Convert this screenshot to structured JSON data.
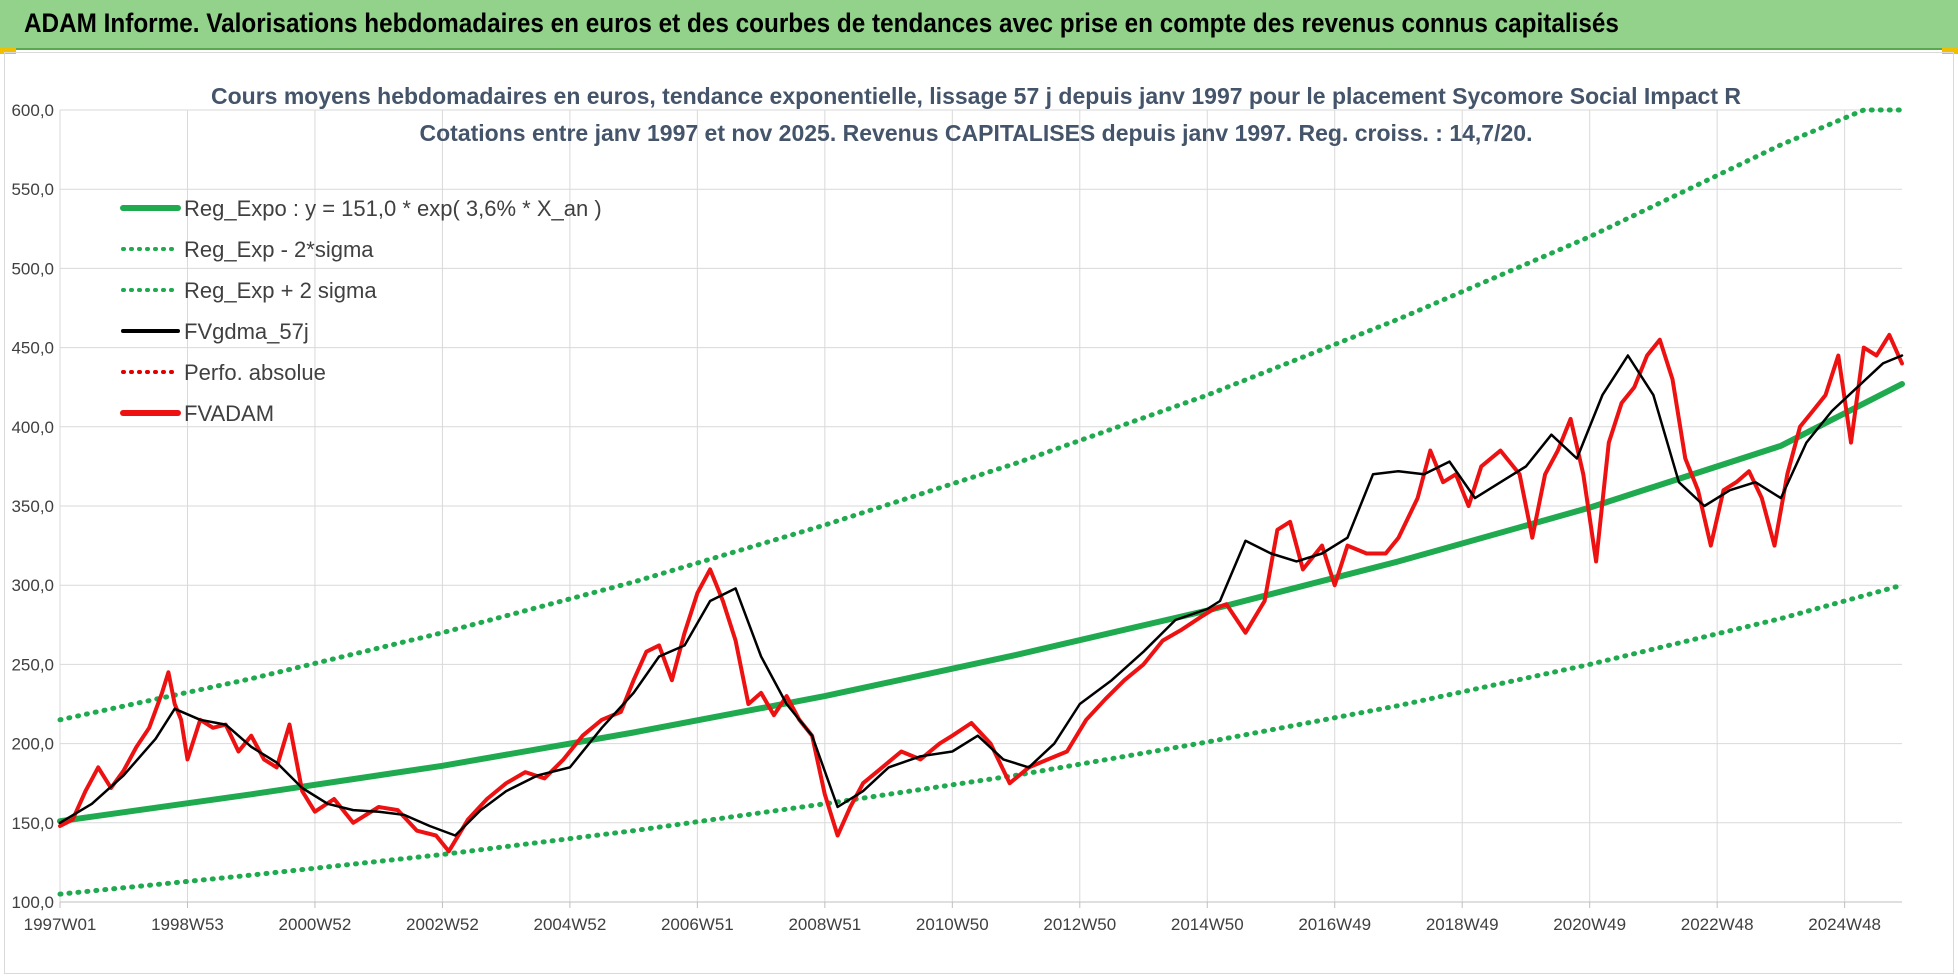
{
  "header": {
    "title": "ADAM Informe. Valorisations hebdomadaires en euros et des courbes de tendances avec prise en compte des revenus connus capitalisés"
  },
  "colors": {
    "banner": "#92d28a",
    "trend": "#1faa4f",
    "sigma": "#1faa4f",
    "smooth": "#000000",
    "perf": "#e00000",
    "price": "#ee1111",
    "grid": "#d9d9d9"
  },
  "chart_data": {
    "type": "line",
    "title": "Cours moyens hebdomadaires en euros, tendance exponentielle, lissage 57 j depuis janv 1997 pour le placement Sycomore Social Impact R",
    "subtitle": "Cotations entre janv 1997 et nov 2025. Revenus CAPITALISES depuis janv 1997. Reg. croiss. : 14,7/20.",
    "ylim": [
      100,
      600
    ],
    "xlim": [
      1997.0,
      2025.9
    ],
    "y_ticks": [
      "100,0",
      "150,0",
      "200,0",
      "250,0",
      "300,0",
      "350,0",
      "400,0",
      "450,0",
      "500,0",
      "550,0",
      "600,0"
    ],
    "x_ticks": [
      {
        "label": "1997W01",
        "x": 1997.0
      },
      {
        "label": "1998W53",
        "x": 1999.0
      },
      {
        "label": "2000W52",
        "x": 2001.0
      },
      {
        "label": "2002W52",
        "x": 2003.0
      },
      {
        "label": "2004W52",
        "x": 2005.0
      },
      {
        "label": "2006W51",
        "x": 2007.0
      },
      {
        "label": "2008W51",
        "x": 2009.0
      },
      {
        "label": "2010W50",
        "x": 2011.0
      },
      {
        "label": "2012W50",
        "x": 2013.0
      },
      {
        "label": "2014W50",
        "x": 2015.0
      },
      {
        "label": "2016W49",
        "x": 2017.0
      },
      {
        "label": "2018W49",
        "x": 2019.0
      },
      {
        "label": "2020W49",
        "x": 2021.0
      },
      {
        "label": "2022W48",
        "x": 2023.0
      },
      {
        "label": "2024W48",
        "x": 2025.0
      }
    ],
    "legend_position": "top-left",
    "legend": [
      {
        "label": "Reg_Expo : y = 151,0 * exp( 3,6% *  X_an )",
        "style": "solid-thick",
        "color": "#1faa4f"
      },
      {
        "label": "Reg_Exp - 2*sigma",
        "style": "dotted",
        "color": "#1faa4f"
      },
      {
        "label": "Reg_Exp + 2 sigma",
        "style": "dotted",
        "color": "#1faa4f"
      },
      {
        "label": "FVgdma_57j",
        "style": "solid",
        "color": "#000000"
      },
      {
        "label": "Perfo. absolue",
        "style": "dotted",
        "color": "#e00000"
      },
      {
        "label": "FVADAM",
        "style": "solid-thick",
        "color": "#ee1111"
      }
    ],
    "series": [
      {
        "name": "Reg_Expo : y = 151,0 * exp( 3,6% *  X_an )",
        "x": [
          1997.0,
          2000.0,
          2003.0,
          2006.0,
          2009.0,
          2012.0,
          2015.0,
          2018.0,
          2021.0,
          2024.0,
          2025.9
        ],
        "y": [
          151,
          168,
          186,
          207,
          230,
          256,
          284,
          315,
          349,
          388,
          427
        ]
      },
      {
        "name": "Reg_Exp - 2*sigma",
        "x": [
          1997.0,
          2000.0,
          2003.0,
          2006.0,
          2009.0,
          2012.0,
          2015.0,
          2018.0,
          2021.0,
          2024.0,
          2025.9
        ],
        "y": [
          105,
          117,
          130,
          145,
          162,
          180,
          201,
          224,
          250,
          279,
          300
        ]
      },
      {
        "name": "Reg_Exp + 2 sigma",
        "x": [
          1997.0,
          2000.0,
          2003.0,
          2006.0,
          2009.0,
          2012.0,
          2015.0,
          2018.0,
          2021.0,
          2024.0,
          2025.3,
          2025.9
        ],
        "y": [
          215,
          241,
          270,
          302,
          338,
          377,
          420,
          468,
          520,
          578,
          600,
          600
        ]
      },
      {
        "name": "FVgdma_57j",
        "x": [
          1997.0,
          1997.5,
          1998.0,
          1998.5,
          1998.8,
          1999.2,
          1999.6,
          2000.0,
          2000.4,
          2000.8,
          2001.2,
          2001.6,
          2002.0,
          2002.4,
          2002.8,
          2003.2,
          2003.6,
          2004.0,
          2004.5,
          2005.0,
          2005.5,
          2006.0,
          2006.4,
          2006.8,
          2007.2,
          2007.6,
          2008.0,
          2008.4,
          2008.8,
          2009.2,
          2009.6,
          2010.0,
          2010.5,
          2011.0,
          2011.4,
          2011.8,
          2012.2,
          2012.6,
          2013.0,
          2013.5,
          2014.0,
          2014.5,
          2015.0,
          2015.2,
          2015.6,
          2016.0,
          2016.4,
          2016.8,
          2017.2,
          2017.6,
          2018.0,
          2018.4,
          2018.8,
          2019.2,
          2019.6,
          2020.0,
          2020.4,
          2020.8,
          2021.2,
          2021.6,
          2022.0,
          2022.4,
          2022.8,
          2023.2,
          2023.6,
          2024.0,
          2024.4,
          2024.8,
          2025.2,
          2025.6,
          2025.9
        ],
        "y": [
          150,
          162,
          180,
          203,
          222,
          215,
          212,
          198,
          188,
          172,
          162,
          158,
          157,
          155,
          148,
          142,
          158,
          170,
          180,
          185,
          210,
          232,
          255,
          262,
          290,
          298,
          255,
          225,
          205,
          160,
          170,
          185,
          192,
          195,
          205,
          190,
          185,
          200,
          225,
          240,
          258,
          278,
          285,
          290,
          328,
          320,
          315,
          320,
          330,
          370,
          372,
          370,
          378,
          355,
          365,
          375,
          395,
          380,
          420,
          445,
          420,
          365,
          350,
          360,
          365,
          355,
          390,
          410,
          425,
          440,
          445
        ]
      },
      {
        "name": "FVADAM",
        "x": [
          1997.0,
          1997.2,
          1997.4,
          1997.6,
          1997.8,
          1998.0,
          1998.2,
          1998.4,
          1998.6,
          1998.7,
          1998.8,
          1998.9,
          1999.0,
          1999.2,
          1999.4,
          1999.6,
          1999.8,
          2000.0,
          2000.2,
          2000.4,
          2000.6,
          2000.8,
          2001.0,
          2001.3,
          2001.6,
          2002.0,
          2002.3,
          2002.6,
          2002.9,
          2003.1,
          2003.4,
          2003.7,
          2004.0,
          2004.3,
          2004.6,
          2004.9,
          2005.2,
          2005.5,
          2005.8,
          2006.0,
          2006.2,
          2006.4,
          2006.6,
          2006.8,
          2007.0,
          2007.2,
          2007.4,
          2007.6,
          2007.8,
          2008.0,
          2008.2,
          2008.4,
          2008.6,
          2008.8,
          2009.0,
          2009.2,
          2009.4,
          2009.6,
          2009.9,
          2010.2,
          2010.5,
          2010.8,
          2011.0,
          2011.3,
          2011.6,
          2011.9,
          2012.2,
          2012.5,
          2012.8,
          2013.1,
          2013.4,
          2013.7,
          2014.0,
          2014.3,
          2014.6,
          2014.9,
          2015.1,
          2015.3,
          2015.6,
          2015.9,
          2016.1,
          2016.3,
          2016.5,
          2016.8,
          2017.0,
          2017.2,
          2017.5,
          2017.8,
          2018.0,
          2018.3,
          2018.5,
          2018.7,
          2018.9,
          2019.1,
          2019.3,
          2019.6,
          2019.9,
          2020.1,
          2020.3,
          2020.5,
          2020.7,
          2020.9,
          2021.1,
          2021.3,
          2021.5,
          2021.7,
          2021.9,
          2022.1,
          2022.3,
          2022.5,
          2022.7,
          2022.9,
          2023.1,
          2023.3,
          2023.5,
          2023.7,
          2023.9,
          2024.1,
          2024.3,
          2024.5,
          2024.7,
          2024.9,
          2025.1,
          2025.3,
          2025.5,
          2025.7,
          2025.9
        ],
        "y": [
          148,
          152,
          170,
          185,
          172,
          183,
          198,
          210,
          232,
          245,
          225,
          215,
          190,
          215,
          210,
          212,
          195,
          205,
          190,
          185,
          212,
          170,
          157,
          165,
          150,
          160,
          158,
          145,
          142,
          132,
          152,
          165,
          175,
          182,
          178,
          190,
          205,
          215,
          220,
          240,
          258,
          262,
          240,
          270,
          295,
          310,
          290,
          265,
          225,
          232,
          218,
          230,
          215,
          205,
          168,
          142,
          160,
          175,
          185,
          195,
          190,
          200,
          205,
          213,
          200,
          175,
          185,
          190,
          195,
          215,
          228,
          240,
          250,
          265,
          272,
          280,
          285,
          288,
          270,
          290,
          335,
          340,
          310,
          325,
          300,
          325,
          320,
          320,
          330,
          355,
          385,
          365,
          370,
          350,
          375,
          385,
          370,
          330,
          370,
          385,
          405,
          370,
          315,
          390,
          415,
          425,
          445,
          455,
          430,
          380,
          360,
          325,
          360,
          365,
          372,
          355,
          325,
          370,
          400,
          410,
          420,
          445,
          390,
          450,
          445,
          458,
          440
        ]
      }
    ]
  }
}
